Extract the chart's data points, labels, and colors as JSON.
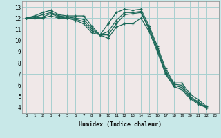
{
  "xlabel": "Humidex (Indice chaleur)",
  "ylabel": "",
  "xlim": [
    -0.5,
    23.5
  ],
  "ylim": [
    3.5,
    13.5
  ],
  "plot_bg_color": "#f0e8e8",
  "fig_bg_color": "#c8e8e8",
  "grid_color": "#a8d0d0",
  "line_color": "#1a6858",
  "xticks": [
    0,
    1,
    2,
    3,
    4,
    5,
    6,
    7,
    8,
    9,
    10,
    11,
    12,
    13,
    14,
    15,
    16,
    17,
    18,
    19,
    20,
    21,
    22,
    23
  ],
  "yticks": [
    4,
    5,
    6,
    7,
    8,
    9,
    10,
    11,
    12,
    13
  ],
  "series": [
    [
      12.0,
      12.2,
      12.5,
      12.7,
      12.3,
      12.2,
      12.2,
      12.2,
      11.3,
      10.5,
      11.5,
      12.5,
      12.8,
      12.7,
      12.8,
      11.3,
      9.5,
      7.5,
      6.2,
      6.2,
      5.2,
      4.7,
      4.1
    ],
    [
      12.0,
      12.1,
      12.3,
      12.5,
      12.2,
      12.1,
      12.0,
      11.9,
      11.1,
      10.5,
      10.8,
      11.8,
      12.5,
      12.5,
      12.6,
      11.1,
      9.3,
      7.3,
      6.1,
      6.0,
      5.0,
      4.5,
      4.0
    ],
    [
      12.0,
      12.0,
      12.1,
      12.4,
      12.1,
      12.0,
      11.9,
      11.7,
      10.9,
      10.5,
      10.5,
      11.5,
      12.3,
      12.4,
      12.5,
      11.0,
      9.2,
      7.1,
      6.0,
      5.8,
      4.9,
      4.4,
      4.0
    ],
    [
      12.0,
      12.0,
      12.0,
      12.2,
      12.0,
      12.0,
      11.8,
      11.5,
      10.7,
      10.5,
      10.2,
      11.2,
      11.5,
      11.5,
      12.0,
      10.8,
      9.0,
      7.0,
      5.9,
      5.6,
      4.8,
      4.3,
      4.0
    ]
  ]
}
